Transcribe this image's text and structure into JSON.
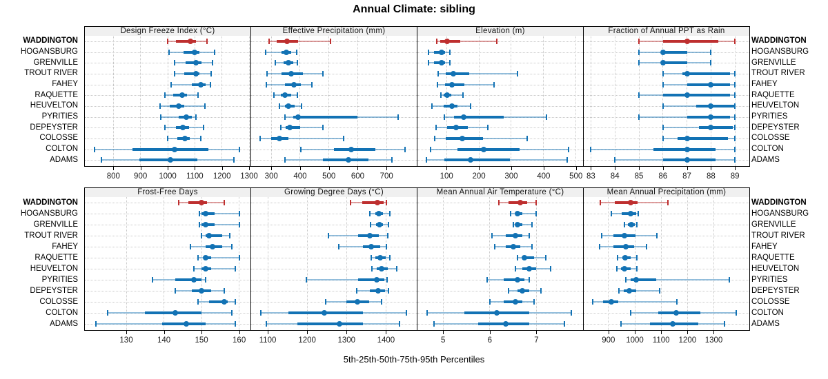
{
  "colors": {
    "highlight": "#be2f2f",
    "normal": "#1272b4",
    "strip_bg": "#f0f0f0",
    "grid": "#c8c8c8",
    "border": "#000000"
  },
  "chart_data": {
    "type": "dotplot",
    "title": "Annual Climate: sibling",
    "xlabel": "5th-25th-50th-75th-95th Percentiles",
    "percentiles": [
      5,
      25,
      50,
      75,
      95
    ],
    "legend_position": "none",
    "grid": "dotted",
    "stations": [
      "WADDINGTON",
      "HOGANSBURG",
      "GRENVILLE",
      "TROUT RIVER",
      "FAHEY",
      "RAQUETTE",
      "HEUVELTON",
      "PYRITIES",
      "DEPEYSTER",
      "COLOSSE",
      "COLTON",
      "ADAMS"
    ],
    "highlight_station": "WADDINGTON",
    "panels": [
      {
        "title": "Design Freeze Index (°C)",
        "xlim": [
          695,
          1305
        ],
        "ticks": [
          800,
          900,
          1000,
          1100,
          1200,
          1300
        ],
        "values": [
          [
            1000,
            1030,
            1085,
            1105,
            1145
          ],
          [
            1005,
            1058,
            1098,
            1118,
            1172
          ],
          [
            1025,
            1065,
            1105,
            1125,
            1165
          ],
          [
            1025,
            1060,
            1105,
            1118,
            1160
          ],
          [
            1012,
            1088,
            1122,
            1140,
            1158
          ],
          [
            990,
            1020,
            1053,
            1072,
            1112
          ],
          [
            973,
            1008,
            1040,
            1062,
            1138
          ],
          [
            975,
            1040,
            1068,
            1088,
            1105
          ],
          [
            990,
            1030,
            1055,
            1078,
            1133
          ],
          [
            1000,
            1035,
            1063,
            1082,
            1123
          ],
          [
            730,
            870,
            1025,
            1150,
            1265
          ],
          [
            755,
            895,
            1010,
            1110,
            1245
          ]
        ]
      },
      {
        "title": "Effective Precipitation (mm)",
        "xlim": [
          230,
          805
        ],
        "ticks": [
          300,
          400,
          500,
          600,
          700
        ],
        "values": [
          [
            293,
            318,
            355,
            392,
            505
          ],
          [
            280,
            335,
            352,
            370,
            388
          ],
          [
            315,
            342,
            360,
            375,
            390
          ],
          [
            285,
            335,
            368,
            410,
            480
          ],
          [
            283,
            348,
            378,
            402,
            442
          ],
          [
            308,
            333,
            348,
            368,
            390
          ],
          [
            328,
            348,
            360,
            382,
            406
          ],
          [
            348,
            375,
            392,
            600,
            740
          ],
          [
            333,
            350,
            365,
            400,
            478
          ],
          [
            262,
            300,
            328,
            360,
            550
          ],
          [
            402,
            518,
            578,
            662,
            764
          ],
          [
            348,
            478,
            569,
            638,
            719
          ]
        ]
      },
      {
        "title": "Elevation (m)",
        "xlim": [
          10,
          522
        ],
        "ticks": [
          100,
          200,
          300,
          400,
          500
        ],
        "values": [
          [
            69,
            80,
            101,
            143,
            255
          ],
          [
            44,
            62,
            84,
            95,
            110
          ],
          [
            44,
            62,
            84,
            95,
            110
          ],
          [
            74,
            97,
            121,
            170,
            320
          ],
          [
            72,
            95,
            116,
            154,
            247
          ],
          [
            83,
            90,
            101,
            115,
            150
          ],
          [
            55,
            90,
            117,
            133,
            174
          ],
          [
            94,
            122,
            152,
            277,
            409
          ],
          [
            67,
            101,
            130,
            166,
            228
          ],
          [
            64,
            97,
            149,
            213,
            349
          ],
          [
            51,
            133,
            214,
            326,
            477
          ],
          [
            38,
            94,
            174,
            296,
            472
          ]
        ]
      },
      {
        "title": "Fraction of Annual PPT as Rain",
        "xlim": [
          82.7,
          89.6
        ],
        "ticks": [
          83,
          84,
          85,
          86,
          87,
          88,
          89
        ],
        "values": [
          [
            85,
            86,
            87,
            88.3,
            89
          ],
          [
            85,
            86,
            86,
            87,
            88
          ],
          [
            85,
            86,
            86,
            87,
            88
          ],
          [
            86,
            86.8,
            87,
            88.8,
            89
          ],
          [
            86,
            87,
            88,
            88.8,
            89
          ],
          [
            85,
            86,
            87,
            88.8,
            89
          ],
          [
            86,
            87.4,
            88,
            89,
            89
          ],
          [
            85,
            87,
            88,
            88.8,
            89
          ],
          [
            86,
            87.5,
            88,
            88.9,
            89
          ],
          [
            86,
            86.6,
            87,
            88.7,
            89
          ],
          [
            83,
            85.6,
            87,
            88.2,
            89
          ],
          [
            84,
            86,
            87,
            88.2,
            89
          ]
        ]
      },
      {
        "title": "Frost-Free Days",
        "xlim": [
          119,
          163
        ],
        "ticks": [
          130,
          140,
          150,
          160
        ],
        "values": [
          [
            144,
            146.5,
            150,
            151.5,
            156
          ],
          [
            149.5,
            150,
            151,
            153.5,
            160
          ],
          [
            149.5,
            150,
            151,
            153.5,
            160
          ],
          [
            150,
            151,
            152,
            155.5,
            157.5
          ],
          [
            147,
            151,
            153,
            155.5,
            158
          ],
          [
            149,
            150.5,
            151,
            152.5,
            160
          ],
          [
            148,
            150,
            151,
            152.5,
            159
          ],
          [
            137,
            143,
            148,
            150,
            151
          ],
          [
            143,
            147.5,
            150,
            152.5,
            156
          ],
          [
            149,
            152,
            156,
            157,
            159
          ],
          [
            125,
            135,
            143,
            150,
            158
          ],
          [
            122,
            139.5,
            146,
            151,
            159
          ]
        ]
      },
      {
        "title": "Growing Degree Days (°C)",
        "xlim": [
          1058,
          1478
        ],
        "ticks": [
          1100,
          1200,
          1300,
          1400
        ],
        "values": [
          [
            1310,
            1340,
            1378,
            1394,
            1401
          ],
          [
            1359,
            1373,
            1382,
            1392,
            1409
          ],
          [
            1360,
            1374,
            1383,
            1393,
            1406
          ],
          [
            1254,
            1330,
            1359,
            1382,
            1404
          ],
          [
            1280,
            1341,
            1362,
            1385,
            1401
          ],
          [
            1362,
            1373,
            1385,
            1399,
            1409
          ],
          [
            1365,
            1377,
            1388,
            1405,
            1428
          ],
          [
            1198,
            1329,
            1376,
            1395,
            1402
          ],
          [
            1326,
            1359,
            1380,
            1397,
            1406
          ],
          [
            1247,
            1300,
            1327,
            1357,
            1388
          ],
          [
            1083,
            1152,
            1244,
            1341,
            1452
          ],
          [
            1096,
            1176,
            1282,
            1341,
            1434
          ]
        ]
      },
      {
        "title": "Mean Annual Air Temperature (°C)",
        "xlim": [
          4.45,
          8.0
        ],
        "ticks": [
          5,
          6,
          7
        ],
        "values": [
          [
            6.2,
            6.4,
            6.65,
            6.8,
            7.0
          ],
          [
            6.45,
            6.55,
            6.6,
            6.7,
            7.0
          ],
          [
            6.5,
            6.55,
            6.6,
            6.7,
            6.9
          ],
          [
            6.05,
            6.35,
            6.55,
            6.7,
            6.85
          ],
          [
            6.1,
            6.35,
            6.5,
            6.65,
            6.9
          ],
          [
            6.6,
            6.7,
            6.75,
            6.95,
            7.2
          ],
          [
            6.55,
            6.7,
            6.85,
            7.0,
            7.3
          ],
          [
            5.95,
            6.3,
            6.6,
            6.75,
            6.85
          ],
          [
            6.4,
            6.6,
            6.7,
            6.85,
            7.1
          ],
          [
            6.0,
            6.3,
            6.55,
            6.7,
            6.95
          ],
          [
            4.65,
            5.45,
            6.15,
            6.85,
            7.75
          ],
          [
            4.8,
            5.75,
            6.35,
            6.85,
            7.6
          ]
        ]
      },
      {
        "title": "Mean Annual Precipitation (mm)",
        "xlim": [
          806,
          1435
        ],
        "ticks": [
          900,
          1000,
          1100,
          1200,
          1300
        ],
        "values": [
          [
            870,
            925,
            985,
            1010,
            1125
          ],
          [
            910,
            950,
            985,
            1005,
            1012
          ],
          [
            960,
            975,
            988,
            1000,
            1008
          ],
          [
            875,
            920,
            960,
            1003,
            1085
          ],
          [
            865,
            920,
            965,
            997,
            1045
          ],
          [
            935,
            953,
            962,
            985,
            1008
          ],
          [
            933,
            948,
            960,
            983,
            1007
          ],
          [
            965,
            983,
            1004,
            1080,
            1360
          ],
          [
            940,
            958,
            980,
            1005,
            1095
          ],
          [
            840,
            880,
            910,
            937,
            1160
          ],
          [
            985,
            1090,
            1157,
            1250,
            1385
          ],
          [
            948,
            1058,
            1145,
            1240,
            1340
          ]
        ]
      }
    ]
  }
}
